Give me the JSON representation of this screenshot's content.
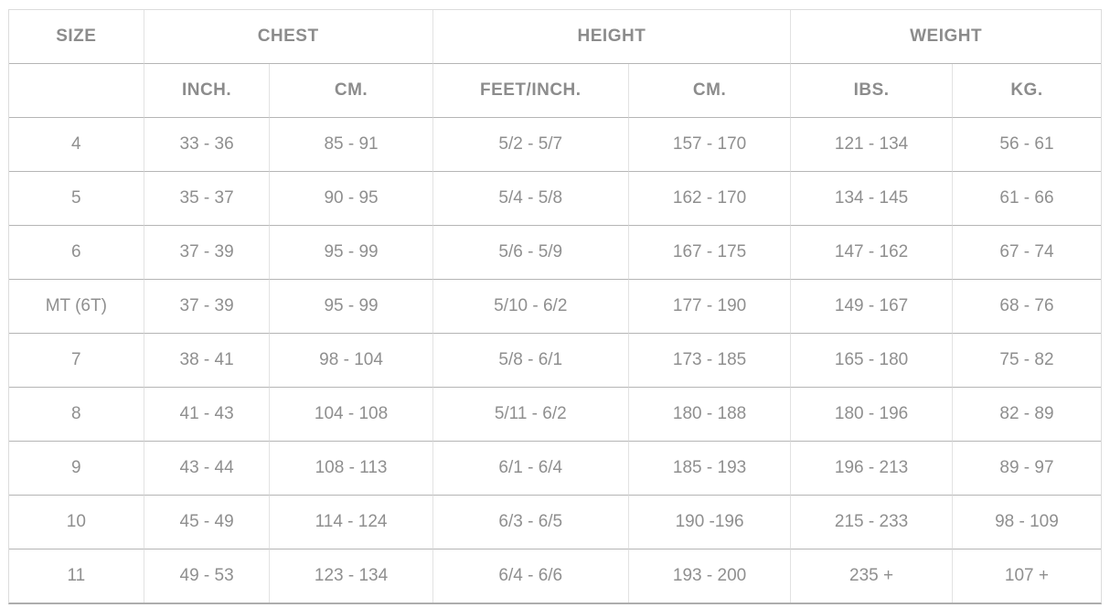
{
  "table": {
    "group_headers": [
      {
        "label": "SIZE",
        "colspan": 1
      },
      {
        "label": "CHEST",
        "colspan": 2
      },
      {
        "label": "HEIGHT",
        "colspan": 2
      },
      {
        "label": "WEIGHT",
        "colspan": 2
      }
    ],
    "sub_headers": [
      "",
      "INCH.",
      "CM.",
      "FEET/INCH.",
      "CM.",
      "IBS.",
      "KG."
    ],
    "rows": [
      [
        "4",
        "33 - 36",
        "85 - 91",
        "5/2 - 5/7",
        "157 - 170",
        "121 - 134",
        "56 - 61"
      ],
      [
        "5",
        "35 - 37",
        "90 - 95",
        "5/4 - 5/8",
        "162 - 170",
        "134 - 145",
        "61 - 66"
      ],
      [
        "6",
        "37 - 39",
        "95 - 99",
        "5/6 - 5/9",
        "167 - 175",
        "147 - 162",
        "67 - 74"
      ],
      [
        "MT (6T)",
        "37 - 39",
        "95 - 99",
        "5/10 - 6/2",
        "177 - 190",
        "149 - 167",
        "68 - 76"
      ],
      [
        "7",
        "38 - 41",
        "98 - 104",
        "5/8 - 6/1",
        "173 - 185",
        "165 - 180",
        "75 - 82"
      ],
      [
        "8",
        "41 - 43",
        "104 - 108",
        "5/11 - 6/2",
        "180 - 188",
        "180 - 196",
        "82 - 89"
      ],
      [
        "9",
        "43 - 44",
        "108 - 113",
        "6/1 - 6/4",
        "185 - 193",
        "196 - 213",
        "89 - 97"
      ],
      [
        "10",
        "45 - 49",
        "114 - 124",
        "6/3 - 6/5",
        "190 -196",
        "215 - 233",
        "98 - 109"
      ],
      [
        "11",
        "49 - 53",
        "123 - 134",
        "6/4 - 6/6",
        "193 - 200",
        "235 +",
        "107 +"
      ]
    ],
    "colors": {
      "text": "#8f8f8f",
      "header_text": "#8c8c8c",
      "border_vertical": "#e2e2e2",
      "border_horizontal": "#b5b5b5",
      "border_outer": "#dcdcdc",
      "background": "#ffffff"
    }
  }
}
